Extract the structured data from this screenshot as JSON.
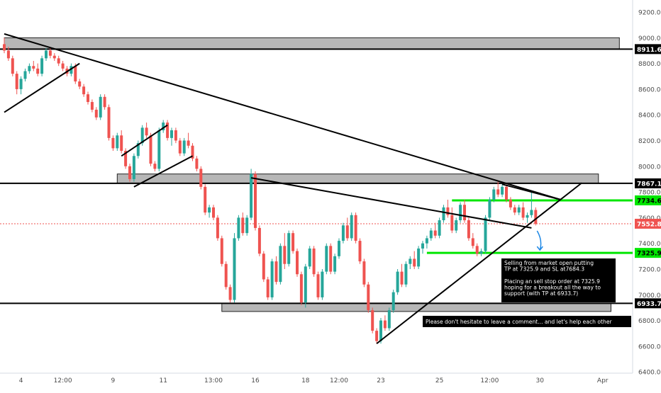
{
  "chart_data": {
    "type": "candlestick",
    "title": "",
    "xlabel": "",
    "ylabel": "",
    "ylim": [
      6400,
      9300
    ],
    "y_ticks": [
      "9200.0",
      "9000.0",
      "8800.0",
      "8600.0",
      "8400.0",
      "8200.0",
      "8000.0",
      "7800.0",
      "7600.0",
      "7400.0",
      "7200.0",
      "7000.0",
      "6800.0",
      "6600.0",
      "6400.0"
    ],
    "y_tick_values": [
      9200,
      9000,
      8800,
      8600,
      8400,
      8200,
      8000,
      7800,
      7600,
      7400,
      7200,
      7000,
      6800,
      6600,
      6400
    ],
    "x_ticks": [
      "4",
      "12:00",
      "9",
      "11",
      "13:00",
      "16",
      "18",
      "12:00",
      "23",
      "25",
      "12:00",
      "30",
      "Apr"
    ],
    "x_tick_index": [
      4,
      14,
      26,
      38,
      50,
      60,
      72,
      80,
      90,
      104,
      116,
      128,
      143
    ],
    "price_labels": [
      {
        "text": "8911.6",
        "value": 8911.6,
        "style": "dark"
      },
      {
        "text": "7867.1",
        "value": 7867.1,
        "style": "dark"
      },
      {
        "text": "7734.6",
        "value": 7734.6,
        "style": "green"
      },
      {
        "text": "7552.8",
        "value": 7552.8,
        "style": "red"
      },
      {
        "text": "7325.9",
        "value": 7325.9,
        "style": "green"
      },
      {
        "text": "6933.7",
        "value": 6933.7,
        "style": "dark"
      }
    ],
    "horizontal_levels": [
      {
        "value": 8911.6,
        "color": "#000000"
      },
      {
        "value": 7867.1,
        "color": "#000000"
      },
      {
        "value": 6933.7,
        "color": "#000000"
      },
      {
        "value": 7734.6,
        "color": "#00e600",
        "from_index": 107
      },
      {
        "value": 7325.9,
        "color": "#00e600",
        "from_index": 101
      },
      {
        "value": 7552.8,
        "color": "#ef5350",
        "dashed": true
      }
    ],
    "zones": [
      {
        "from_index": 0,
        "to_index": 147,
        "low": 8911.6,
        "high": 9000
      },
      {
        "from_index": 27,
        "to_index": 142,
        "low": 7867.1,
        "high": 7940
      },
      {
        "from_index": 52,
        "to_index": 145,
        "low": 6870,
        "high": 6933.7
      }
    ],
    "trendlines": [
      {
        "x1": 0,
        "y1": 9030,
        "x2": 133,
        "y2": 7740
      },
      {
        "x1": 0,
        "y1": 8420,
        "x2": 18,
        "y2": 8800
      },
      {
        "x1": 31,
        "y1": 7840,
        "x2": 45,
        "y2": 8080
      },
      {
        "x1": 28,
        "y1": 8080,
        "x2": 39,
        "y2": 8320
      },
      {
        "x1": 59,
        "y1": 7910,
        "x2": 126,
        "y2": 7520
      },
      {
        "x1": 89,
        "y1": 6620,
        "x2": 138,
        "y2": 7870
      },
      {
        "x1": 119,
        "y1": 7860,
        "x2": 133,
        "y2": 7740
      }
    ],
    "candles": [
      [
        8950,
        9000,
        8880,
        8900
      ],
      [
        8900,
        8930,
        8820,
        8840
      ],
      [
        8840,
        8860,
        8700,
        8720
      ],
      [
        8720,
        8740,
        8560,
        8600
      ],
      [
        8600,
        8700,
        8560,
        8680
      ],
      [
        8680,
        8760,
        8660,
        8740
      ],
      [
        8740,
        8800,
        8720,
        8780
      ],
      [
        8780,
        8820,
        8740,
        8760
      ],
      [
        8760,
        8800,
        8700,
        8720
      ],
      [
        8720,
        8860,
        8700,
        8840
      ],
      [
        8840,
        8920,
        8820,
        8900
      ],
      [
        8900,
        8920,
        8840,
        8860
      ],
      [
        8860,
        8880,
        8820,
        8840
      ],
      [
        8840,
        8860,
        8780,
        8800
      ],
      [
        8800,
        8820,
        8740,
        8760
      ],
      [
        8760,
        8780,
        8700,
        8720
      ],
      [
        8720,
        8800,
        8700,
        8780
      ],
      [
        8780,
        8800,
        8640,
        8660
      ],
      [
        8660,
        8680,
        8600,
        8620
      ],
      [
        8620,
        8640,
        8540,
        8560
      ],
      [
        8560,
        8580,
        8480,
        8500
      ],
      [
        8500,
        8520,
        8420,
        8440
      ],
      [
        8440,
        8460,
        8360,
        8380
      ],
      [
        8380,
        8560,
        8360,
        8540
      ],
      [
        8540,
        8560,
        8440,
        8460
      ],
      [
        8460,
        8480,
        8200,
        8220
      ],
      [
        8220,
        8240,
        8120,
        8140
      ],
      [
        8140,
        8260,
        8120,
        8240
      ],
      [
        8240,
        8280,
        8100,
        8120
      ],
      [
        8120,
        8140,
        7980,
        8000
      ],
      [
        8000,
        8020,
        7880,
        7900
      ],
      [
        7900,
        8100,
        7880,
        8080
      ],
      [
        8080,
        8200,
        8060,
        8180
      ],
      [
        8180,
        8320,
        8160,
        8300
      ],
      [
        8300,
        8340,
        8220,
        8240
      ],
      [
        8240,
        8260,
        8000,
        8020
      ],
      [
        8020,
        8040,
        7960,
        7980
      ],
      [
        7980,
        8300,
        7960,
        8280
      ],
      [
        8280,
        8360,
        8260,
        8340
      ],
      [
        8340,
        8360,
        8200,
        8220
      ],
      [
        8220,
        8300,
        8160,
        8280
      ],
      [
        8280,
        8300,
        8180,
        8200
      ],
      [
        8200,
        8220,
        8080,
        8100
      ],
      [
        8100,
        8220,
        8080,
        8200
      ],
      [
        8200,
        8260,
        8140,
        8160
      ],
      [
        8160,
        8180,
        8040,
        8060
      ],
      [
        8060,
        8080,
        7960,
        7980
      ],
      [
        7980,
        8000,
        7820,
        7840
      ],
      [
        7840,
        7860,
        7620,
        7640
      ],
      [
        7640,
        7700,
        7600,
        7680
      ],
      [
        7680,
        7700,
        7580,
        7600
      ],
      [
        7600,
        7620,
        7420,
        7440
      ],
      [
        7440,
        7460,
        7220,
        7240
      ],
      [
        7240,
        7260,
        7040,
        7060
      ],
      [
        7060,
        7080,
        6940,
        6960
      ],
      [
        6960,
        7480,
        6940,
        7440
      ],
      [
        7440,
        7620,
        7420,
        7600
      ],
      [
        7600,
        7640,
        7460,
        7480
      ],
      [
        7480,
        7620,
        7460,
        7600
      ],
      [
        7600,
        7980,
        7580,
        7940
      ],
      [
        7940,
        7960,
        7500,
        7520
      ],
      [
        7520,
        7540,
        7300,
        7320
      ],
      [
        7320,
        7340,
        7100,
        7120
      ],
      [
        7120,
        7140,
        6960,
        6980
      ],
      [
        6980,
        7280,
        6960,
        7260
      ],
      [
        7260,
        7300,
        7080,
        7100
      ],
      [
        7100,
        7400,
        7080,
        7380
      ],
      [
        7380,
        7480,
        7200,
        7240
      ],
      [
        7240,
        7500,
        7220,
        7480
      ],
      [
        7480,
        7500,
        7320,
        7340
      ],
      [
        7340,
        7360,
        7140,
        7160
      ],
      [
        7160,
        7180,
        6920,
        6940
      ],
      [
        6940,
        7240,
        6900,
        7220
      ],
      [
        7220,
        7380,
        7200,
        7360
      ],
      [
        7360,
        7380,
        7140,
        7160
      ],
      [
        7160,
        7180,
        6960,
        6980
      ],
      [
        6980,
        7200,
        6960,
        7180
      ],
      [
        7180,
        7400,
        7160,
        7380
      ],
      [
        7380,
        7400,
        7160,
        7180
      ],
      [
        7180,
        7320,
        7160,
        7300
      ],
      [
        7300,
        7440,
        7280,
        7420
      ],
      [
        7420,
        7560,
        7400,
        7540
      ],
      [
        7540,
        7600,
        7420,
        7440
      ],
      [
        7440,
        7640,
        7420,
        7620
      ],
      [
        7620,
        7640,
        7400,
        7420
      ],
      [
        7420,
        7440,
        7240,
        7260
      ],
      [
        7260,
        7280,
        7060,
        7080
      ],
      [
        7080,
        7100,
        6860,
        6880
      ],
      [
        6880,
        6900,
        6700,
        6720
      ],
      [
        6720,
        6740,
        6620,
        6640
      ],
      [
        6640,
        6820,
        6620,
        6800
      ],
      [
        6800,
        6840,
        6720,
        6740
      ],
      [
        6740,
        6900,
        6720,
        6880
      ],
      [
        6880,
        7040,
        6860,
        7020
      ],
      [
        7020,
        7200,
        7000,
        7180
      ],
      [
        7180,
        7240,
        7060,
        7080
      ],
      [
        7080,
        7260,
        7060,
        7240
      ],
      [
        7240,
        7300,
        7200,
        7280
      ],
      [
        7280,
        7340,
        7200,
        7220
      ],
      [
        7220,
        7380,
        7200,
        7360
      ],
      [
        7360,
        7420,
        7320,
        7400
      ],
      [
        7400,
        7460,
        7360,
        7440
      ],
      [
        7440,
        7520,
        7420,
        7500
      ],
      [
        7500,
        7560,
        7440,
        7460
      ],
      [
        7460,
        7600,
        7440,
        7580
      ],
      [
        7580,
        7700,
        7560,
        7680
      ],
      [
        7680,
        7740,
        7600,
        7620
      ],
      [
        7620,
        7680,
        7480,
        7500
      ],
      [
        7500,
        7600,
        7480,
        7580
      ],
      [
        7580,
        7720,
        7560,
        7700
      ],
      [
        7700,
        7740,
        7560,
        7580
      ],
      [
        7580,
        7600,
        7420,
        7440
      ],
      [
        7440,
        7480,
        7360,
        7380
      ],
      [
        7380,
        7400,
        7300,
        7320
      ],
      [
        7320,
        7360,
        7300,
        7340
      ],
      [
        7340,
        7620,
        7320,
        7600
      ],
      [
        7600,
        7760,
        7580,
        7740
      ],
      [
        7740,
        7840,
        7720,
        7820
      ],
      [
        7820,
        7880,
        7760,
        7780
      ],
      [
        7780,
        7860,
        7760,
        7840
      ],
      [
        7840,
        7860,
        7720,
        7740
      ],
      [
        7740,
        7760,
        7660,
        7680
      ],
      [
        7680,
        7700,
        7620,
        7640
      ],
      [
        7640,
        7700,
        7620,
        7680
      ],
      [
        7680,
        7720,
        7580,
        7600
      ],
      [
        7600,
        7640,
        7560,
        7620
      ],
      [
        7620,
        7800,
        7600,
        7660
      ],
      [
        7660,
        7680,
        7540,
        7552.8
      ]
    ],
    "annotations": [
      {
        "text": "Selling from market open putting\nTP at 7325.9 and SL at7684.3\n\nPlacing an sell stop order at 7325.9\nhoping for a breakout all the way to\nsupport (with TP at 6933.7)"
      },
      {
        "text": "Please don't hesitate to leave a comment... and let's help each other"
      }
    ],
    "arrow": {
      "color": "#1e88e5"
    }
  }
}
